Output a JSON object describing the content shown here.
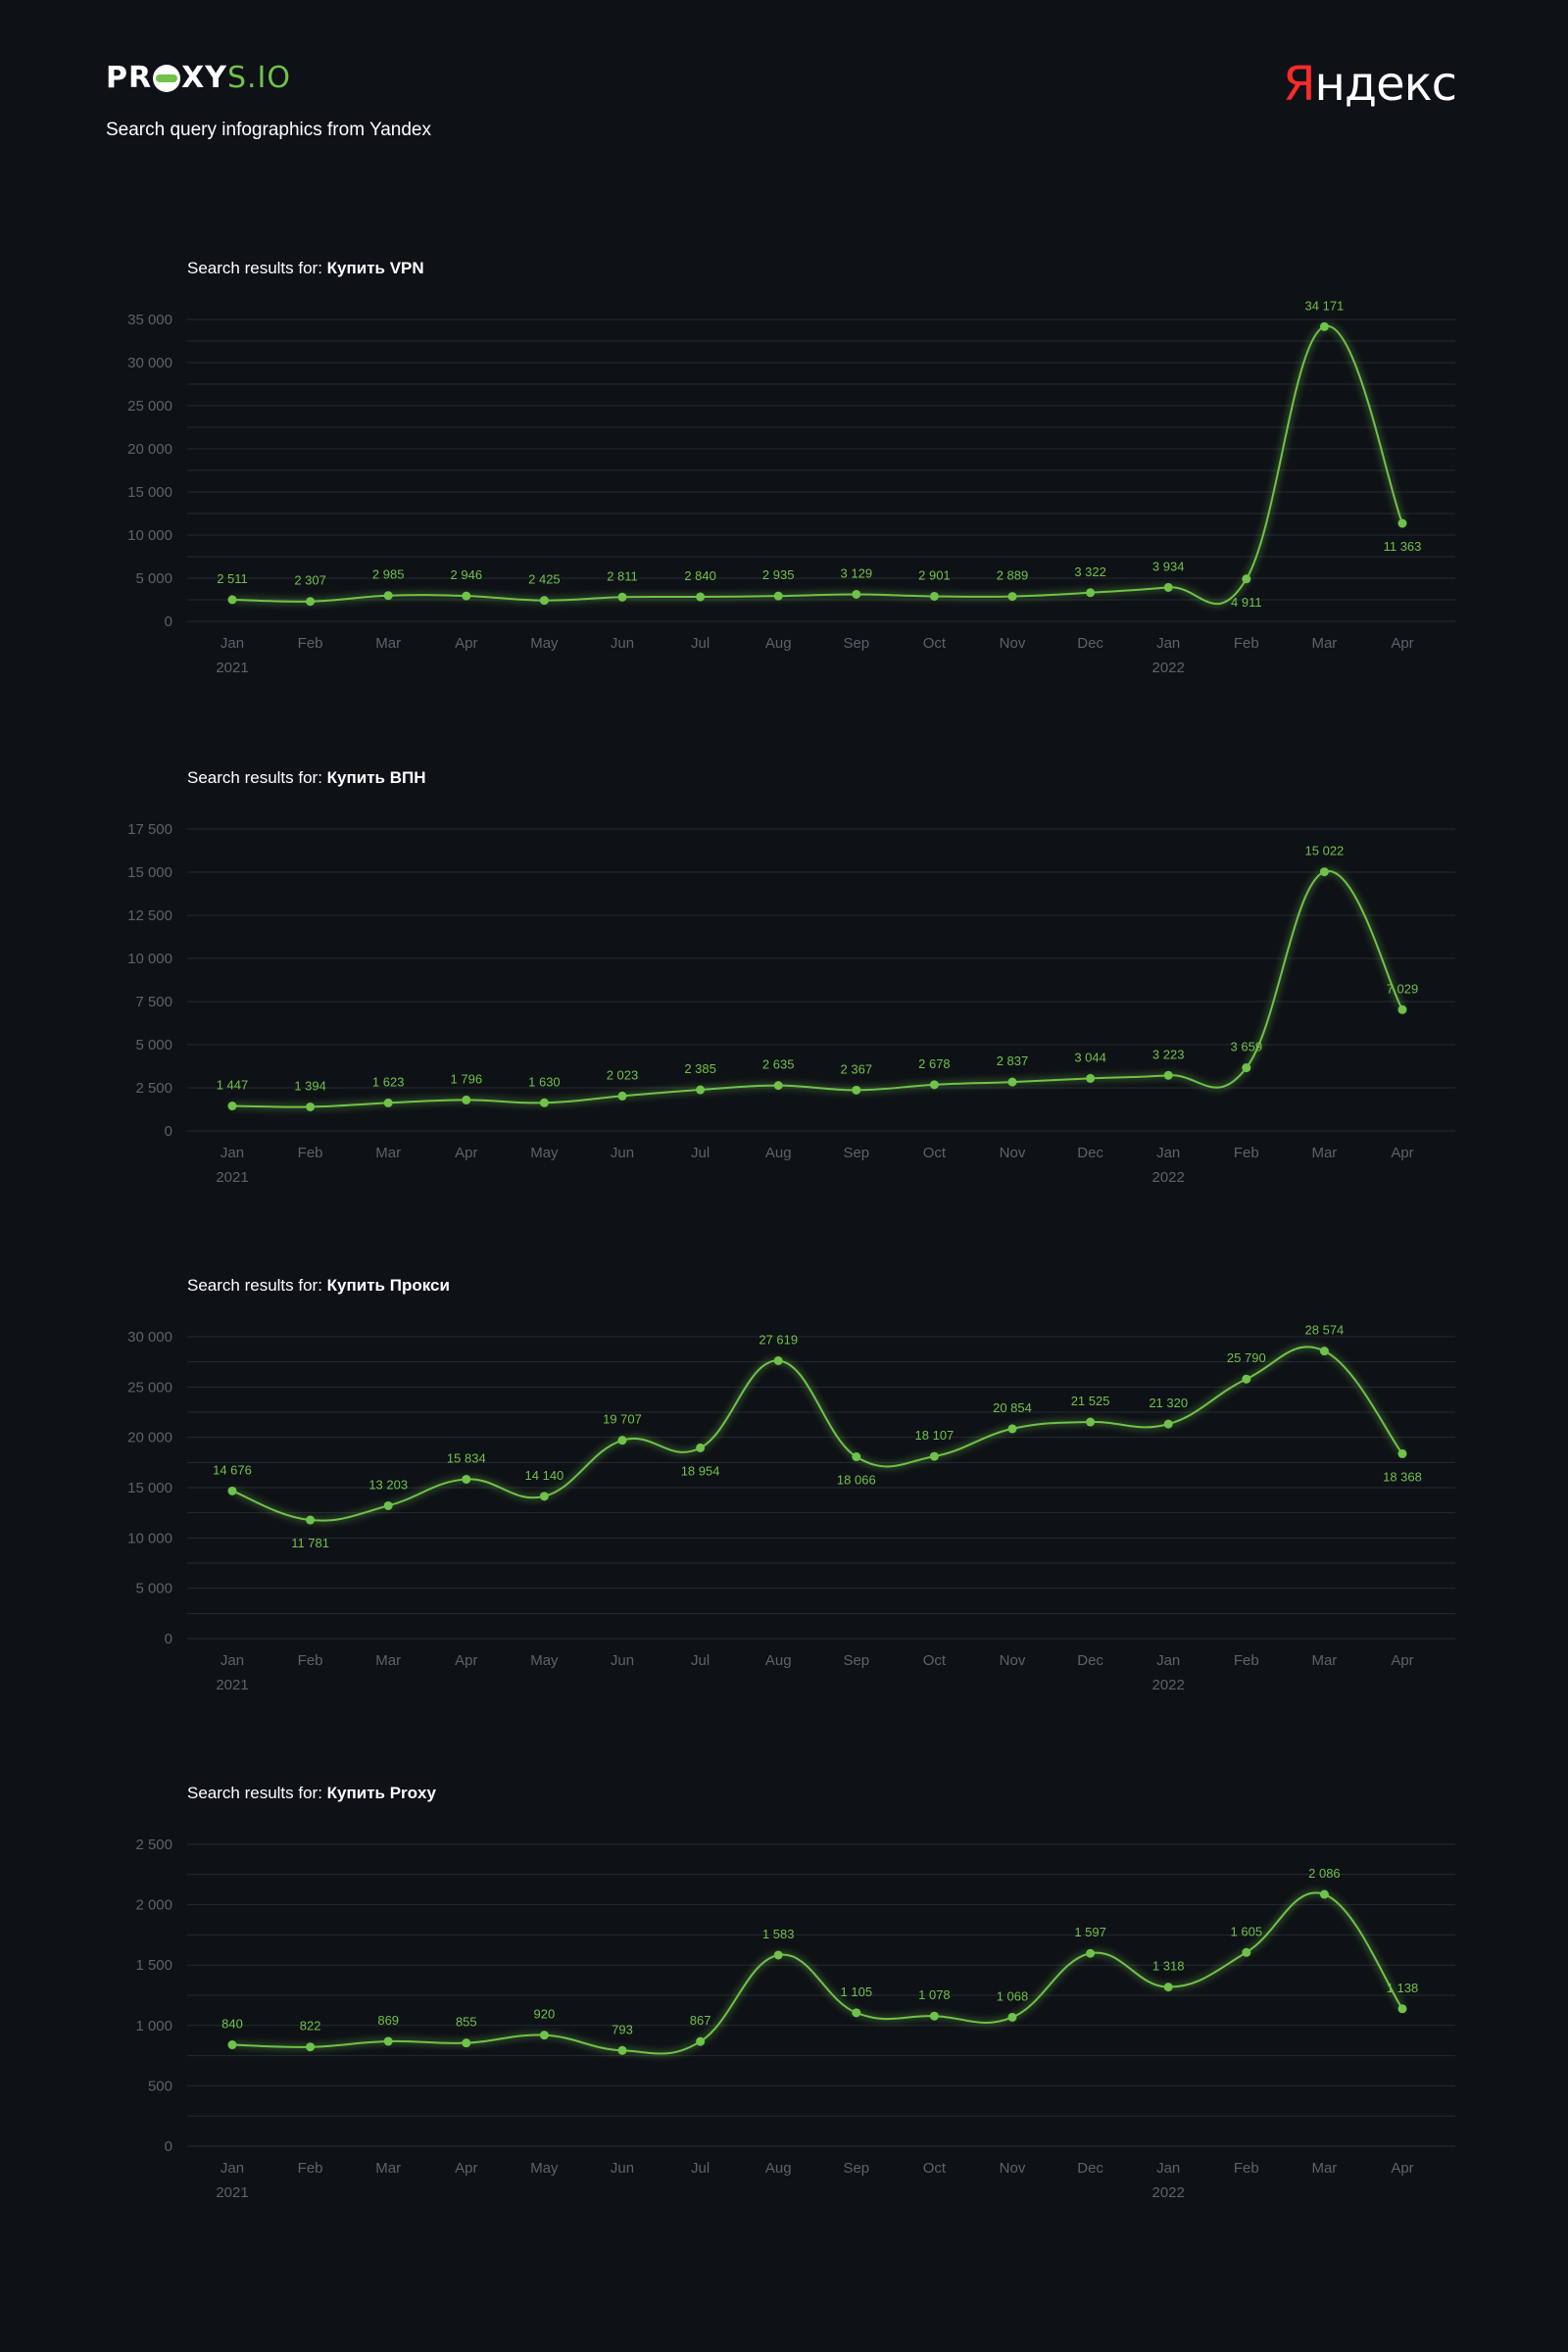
{
  "header": {
    "logo_bold": "PR",
    "logo_bold2": "XY",
    "logo_thin": "S.IO",
    "subtitle": "Search query infographics from Yandex",
    "yandex_first": "Я",
    "yandex_rest": "ндекс"
  },
  "colors": {
    "accent": "#6fc24a",
    "background": "#0e1116",
    "grid": "#252a31",
    "axis_text": "#5c636b",
    "yandex_red": "#ff2a2a"
  },
  "chart_data": [
    {
      "type": "line",
      "title_prefix": "Search results for: ",
      "title_keyword": "Купить VPN",
      "categories": [
        "Jan",
        "Feb",
        "Mar",
        "Apr",
        "May",
        "Jun",
        "Jul",
        "Aug",
        "Sep",
        "Oct",
        "Nov",
        "Dec",
        "Jan",
        "Feb",
        "Mar",
        "Apr"
      ],
      "year_labels": [
        "2021",
        "",
        "",
        "",
        "",
        "",
        "",
        "",
        "",
        "",
        "",
        "",
        "2022",
        "",
        "",
        ""
      ],
      "values": [
        2511,
        2307,
        2985,
        2946,
        2425,
        2811,
        2840,
        2935,
        3129,
        2901,
        2889,
        3322,
        3934,
        4911,
        34171,
        11363
      ],
      "value_labels": [
        "2 511",
        "2 307",
        "2 985",
        "2 946",
        "2 425",
        "2 811",
        "2 840",
        "2 935",
        "3 129",
        "2 901",
        "2 889",
        "3 322",
        "3 934",
        "4 911",
        "34 171",
        "11 363"
      ],
      "label_below": [
        false,
        false,
        false,
        false,
        false,
        false,
        false,
        false,
        false,
        false,
        false,
        false,
        false,
        true,
        false,
        true
      ],
      "yticks": [
        0,
        5000,
        10000,
        15000,
        20000,
        25000,
        30000,
        35000
      ],
      "ytick_labels": [
        "0",
        "5 000",
        "10 000",
        "15 000",
        "20 000",
        "25 000",
        "30 000",
        "35 000"
      ],
      "ylim": [
        0,
        35000
      ],
      "grid_lines": 14
    },
    {
      "type": "line",
      "title_prefix": "Search results for: ",
      "title_keyword": "Купить ВПН",
      "categories": [
        "Jan",
        "Feb",
        "Mar",
        "Apr",
        "May",
        "Jun",
        "Jul",
        "Aug",
        "Sep",
        "Oct",
        "Nov",
        "Dec",
        "Jan",
        "Feb",
        "Mar",
        "Apr"
      ],
      "year_labels": [
        "2021",
        "",
        "",
        "",
        "",
        "",
        "",
        "",
        "",
        "",
        "",
        "",
        "2022",
        "",
        "",
        ""
      ],
      "values": [
        1447,
        1394,
        1623,
        1796,
        1630,
        2023,
        2385,
        2635,
        2367,
        2678,
        2837,
        3044,
        3223,
        3659,
        15022,
        7029
      ],
      "value_labels": [
        "1 447",
        "1 394",
        "1 623",
        "1 796",
        "1 630",
        "2 023",
        "2 385",
        "2 635",
        "2 367",
        "2 678",
        "2 837",
        "3 044",
        "3 223",
        "3 659",
        "15 022",
        "7 029"
      ],
      "label_below": [
        false,
        false,
        false,
        false,
        false,
        false,
        false,
        false,
        false,
        false,
        false,
        false,
        false,
        false,
        false,
        false
      ],
      "yticks": [
        0,
        2500,
        5000,
        7500,
        10000,
        12500,
        15000,
        17500
      ],
      "ytick_labels": [
        "0",
        "2 500",
        "5 000",
        "7 500",
        "10 000",
        "12 500",
        "15 000",
        "17 500"
      ],
      "ylim": [
        0,
        17500
      ],
      "grid_lines": 7
    },
    {
      "type": "line",
      "title_prefix": "Search results for: ",
      "title_keyword": "Купить Прокси",
      "categories": [
        "Jan",
        "Feb",
        "Mar",
        "Apr",
        "May",
        "Jun",
        "Jul",
        "Aug",
        "Sep",
        "Oct",
        "Nov",
        "Dec",
        "Jan",
        "Feb",
        "Mar",
        "Apr"
      ],
      "year_labels": [
        "2021",
        "",
        "",
        "",
        "",
        "",
        "",
        "",
        "",
        "",
        "",
        "",
        "2022",
        "",
        "",
        ""
      ],
      "values": [
        14676,
        11781,
        13203,
        15834,
        14140,
        19707,
        18954,
        27619,
        18066,
        18107,
        20854,
        21525,
        21320,
        25790,
        28574,
        18368
      ],
      "value_labels": [
        "14 676",
        "11 781",
        "13 203",
        "15 834",
        "14 140",
        "19 707",
        "18 954",
        "27 619",
        "18 066",
        "18 107",
        "20 854",
        "21 525",
        "21 320",
        "25 790",
        "28 574",
        "18 368"
      ],
      "label_below": [
        false,
        true,
        false,
        false,
        false,
        false,
        true,
        false,
        true,
        false,
        false,
        false,
        false,
        false,
        false,
        true
      ],
      "yticks": [
        0,
        5000,
        10000,
        15000,
        20000,
        25000,
        30000
      ],
      "ytick_labels": [
        "0",
        "5 000",
        "10 000",
        "15 000",
        "20 000",
        "25 000",
        "30 000"
      ],
      "ylim": [
        0,
        30000
      ],
      "grid_lines": 12
    },
    {
      "type": "line",
      "title_prefix": "Search results for: ",
      "title_keyword": "Купить Proxy",
      "categories": [
        "Jan",
        "Feb",
        "Mar",
        "Apr",
        "May",
        "Jun",
        "Jul",
        "Aug",
        "Sep",
        "Oct",
        "Nov",
        "Dec",
        "Jan",
        "Feb",
        "Mar",
        "Apr"
      ],
      "year_labels": [
        "2021",
        "",
        "",
        "",
        "",
        "",
        "",
        "",
        "",
        "",
        "",
        "",
        "2022",
        "",
        "",
        ""
      ],
      "values": [
        840,
        822,
        869,
        855,
        920,
        793,
        867,
        1583,
        1105,
        1078,
        1068,
        1597,
        1318,
        1605,
        2086,
        1138
      ],
      "value_labels": [
        "840",
        "822",
        "869",
        "855",
        "920",
        "793",
        "867",
        "1 583",
        "1 105",
        "1 078",
        "1 068",
        "1 597",
        "1 318",
        "1 605",
        "2 086",
        "1 138"
      ],
      "label_below": [
        false,
        false,
        false,
        false,
        false,
        false,
        false,
        false,
        false,
        false,
        false,
        false,
        false,
        false,
        false,
        false
      ],
      "yticks": [
        0,
        500,
        1000,
        1500,
        2000,
        2500
      ],
      "ytick_labels": [
        "0",
        "500",
        "1 000",
        "1 500",
        "2 000",
        "2 500"
      ],
      "ylim": [
        0,
        2500
      ],
      "grid_lines": 10
    }
  ]
}
